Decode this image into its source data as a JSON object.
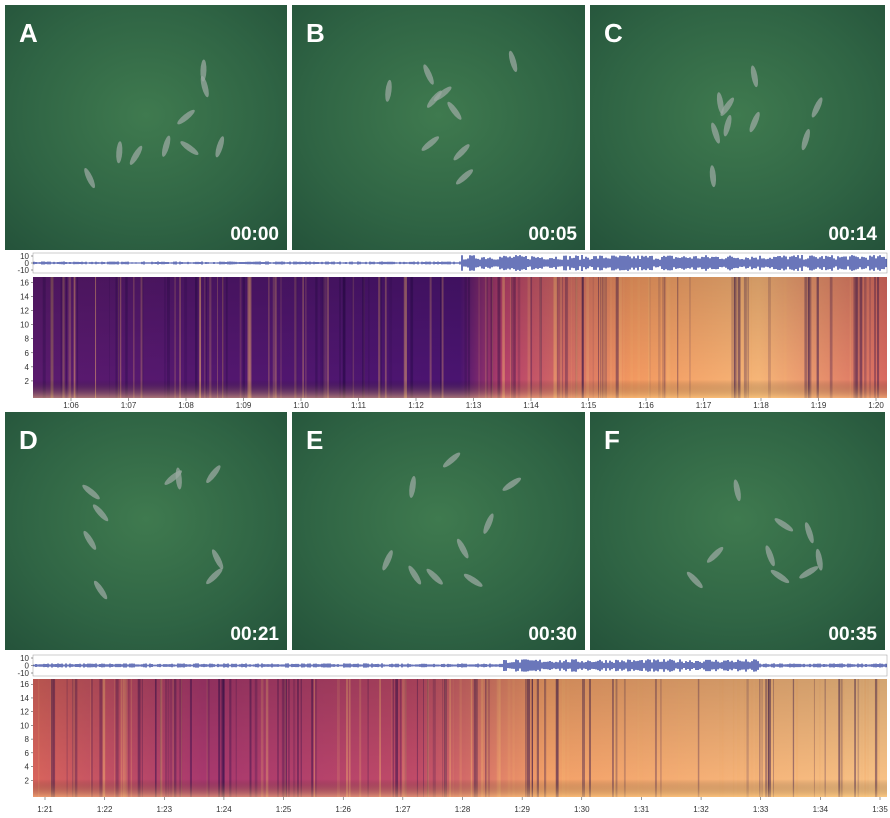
{
  "panels": [
    {
      "letter": "A",
      "time": "00:00"
    },
    {
      "letter": "B",
      "time": "00:05"
    },
    {
      "letter": "C",
      "time": "00:14"
    },
    {
      "letter": "D",
      "time": "00:21"
    },
    {
      "letter": "E",
      "time": "00:30"
    },
    {
      "letter": "F",
      "time": "00:35"
    }
  ],
  "strips": [
    {
      "waveform_ticks": [
        10,
        0,
        -10
      ],
      "frequency_ticks": [
        2,
        4,
        6,
        8,
        10,
        12,
        14,
        16
      ],
      "time_ticks": [
        "1:06",
        "1:07",
        "1:08",
        "1:09",
        "1:10",
        "1:11",
        "1:12",
        "1:13",
        "1:14",
        "1:15",
        "1:16",
        "1:17",
        "1:18",
        "1:19",
        "1:20"
      ]
    },
    {
      "waveform_ticks": [
        10,
        0,
        -10
      ],
      "frequency_ticks": [
        2,
        4,
        6,
        8,
        10,
        12,
        14,
        16
      ],
      "time_ticks": [
        "1:21",
        "1:22",
        "1:23",
        "1:24",
        "1:25",
        "1:26",
        "1:27",
        "1:28",
        "1:29",
        "1:30",
        "1:31",
        "1:32",
        "1:33",
        "1:34",
        "1:35"
      ]
    }
  ]
}
